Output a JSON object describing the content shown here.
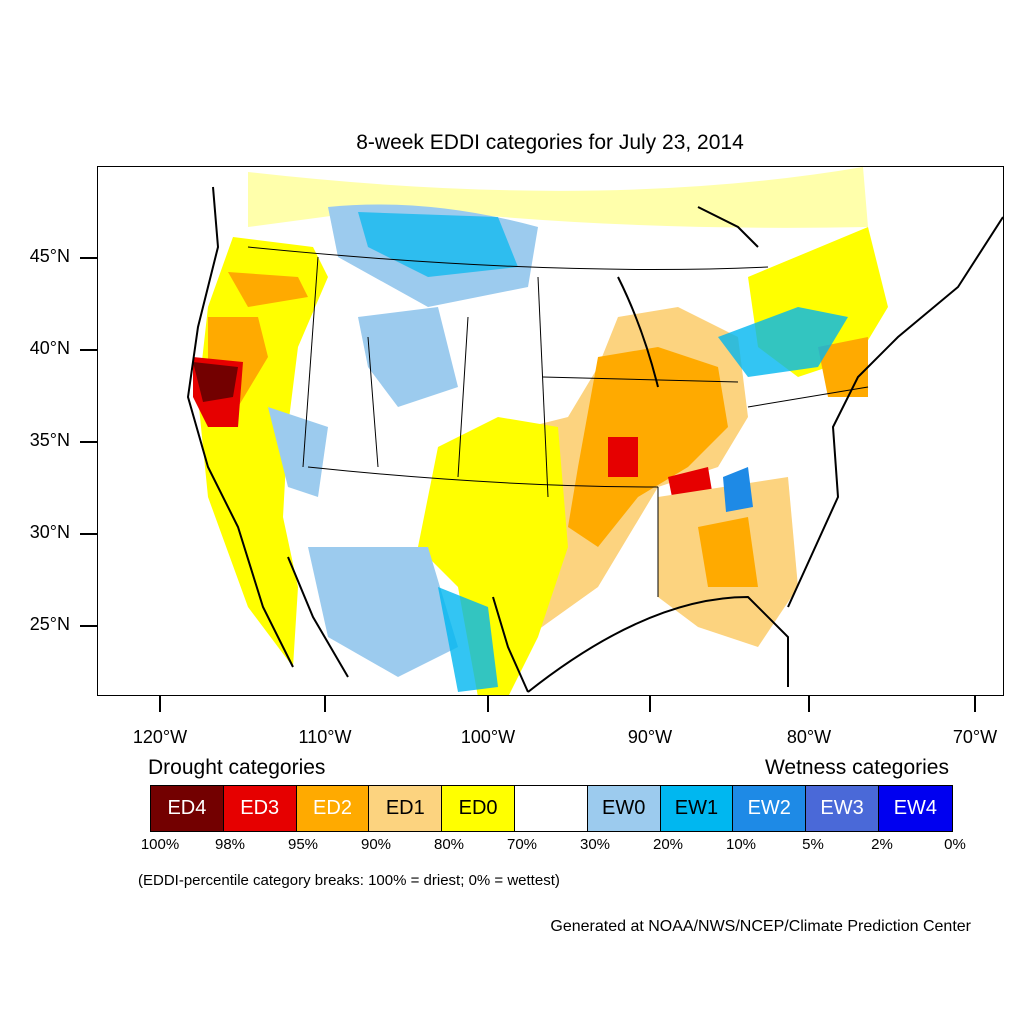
{
  "title": "8-week EDDI categories for July 23, 2014",
  "lat_labels": [
    "45°N",
    "40°N",
    "35°N",
    "30°N",
    "25°N"
  ],
  "lon_labels": [
    "120°W",
    "110°W",
    "100°W",
    "90°W",
    "80°W",
    "70°W"
  ],
  "legend": {
    "drought_heading": "Drought categories",
    "wetness_heading": "Wetness categories",
    "categories": [
      {
        "label": "ED4",
        "color": "#730000",
        "text_color": "#ffffff"
      },
      {
        "label": "ED3",
        "color": "#e60000",
        "text_color": "#ffffff"
      },
      {
        "label": "ED2",
        "color": "#ffaa00",
        "text_color": "#ffffff"
      },
      {
        "label": "ED1",
        "color": "#fcd37f",
        "text_color": "#000000"
      },
      {
        "label": "ED0",
        "color": "#ffff00",
        "text_color": "#000000"
      },
      {
        "label": "",
        "color": "#ffffff",
        "text_color": "#000000"
      },
      {
        "label": "EW0",
        "color": "#9ccbee",
        "text_color": "#000000"
      },
      {
        "label": "EW1",
        "color": "#00b7f0",
        "text_color": "#000000"
      },
      {
        "label": "EW2",
        "color": "#1e8ae6",
        "text_color": "#ffffff"
      },
      {
        "label": "EW3",
        "color": "#4a69d8",
        "text_color": "#ffffff"
      },
      {
        "label": "EW4",
        "color": "#0000f0",
        "text_color": "#ffffff"
      }
    ],
    "percentiles": [
      "100%",
      "98%",
      "95%",
      "90%",
      "80%",
      "70%",
      "30%",
      "20%",
      "10%",
      "5%",
      "2%",
      "0%"
    ]
  },
  "breaks_note": "(EDDI-percentile category breaks: 100% = driest; 0% = wettest)",
  "credit": "Generated at NOAA/NWS/NCEP/Climate Prediction Center"
}
